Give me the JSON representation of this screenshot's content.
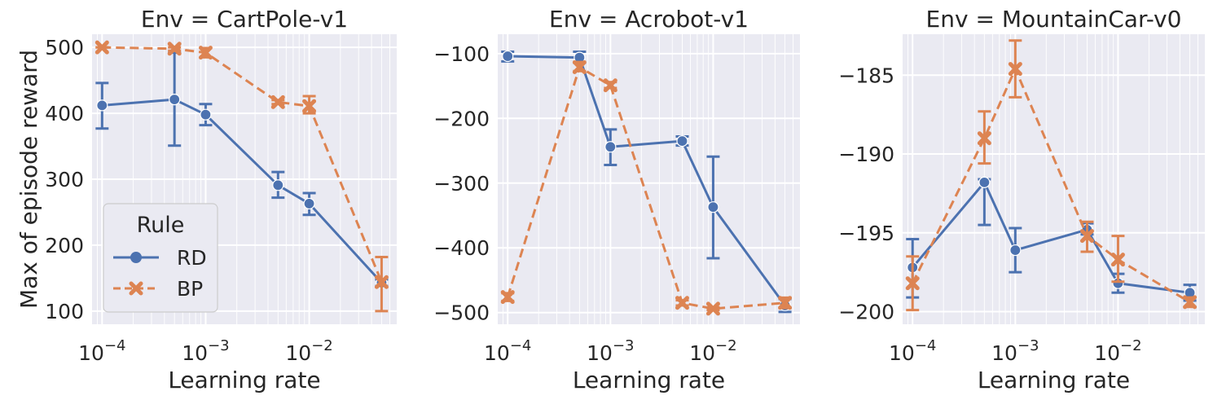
{
  "colors": {
    "RD": "#4c72b0",
    "BP": "#dd8452"
  },
  "legend": {
    "title": "Rule",
    "placement": "lower-left",
    "entries": [
      "RD",
      "BP"
    ]
  },
  "chart_data": [
    {
      "type": "line",
      "title": "Env = CartPole-v1",
      "xlabel": "Learning rate",
      "ylabel": "Max of episode reward",
      "xscale": "log",
      "xlim": [
        8e-05,
        0.07
      ],
      "xticks": [
        0.0001,
        0.001,
        0.01
      ],
      "xtick_labels": [
        [
          "10",
          "−4"
        ],
        [
          "10",
          "−3"
        ],
        [
          "10",
          "−2"
        ]
      ],
      "ylim": [
        80,
        520
      ],
      "yticks": [
        100,
        200,
        300,
        400,
        500
      ],
      "ytick_labels": [
        "100",
        "200",
        "300",
        "400",
        "500"
      ],
      "grid": true,
      "x": [
        0.0001,
        0.0005,
        0.001,
        0.005,
        0.01,
        0.05
      ],
      "series": [
        {
          "name": "RD",
          "values": [
            412,
            421,
            398,
            291,
            263,
            143
          ],
          "err_low": [
            377,
            351,
            382,
            272,
            246,
            138
          ],
          "err_high": [
            446,
            492,
            414,
            311,
            279,
            148
          ]
        },
        {
          "name": "BP",
          "values": [
            500,
            498,
            492,
            417,
            411,
            144
          ],
          "err_low": [
            500,
            495,
            485,
            414,
            400,
            100
          ],
          "err_high": [
            500,
            500,
            499,
            420,
            426,
            182
          ]
        }
      ]
    },
    {
      "type": "line",
      "title": "Env = Acrobot-v1",
      "xlabel": "Learning rate",
      "ylabel": "",
      "xscale": "log",
      "xlim": [
        8e-05,
        0.07
      ],
      "xticks": [
        0.0001,
        0.001,
        0.01
      ],
      "xtick_labels": [
        [
          "10",
          "−4"
        ],
        [
          "10",
          "−3"
        ],
        [
          "10",
          "−2"
        ]
      ],
      "ylim": [
        -518,
        -70
      ],
      "yticks": [
        -500,
        -400,
        -300,
        -200,
        -100
      ],
      "ytick_labels": [
        "−500",
        "−400",
        "−300",
        "−200",
        "−100"
      ],
      "grid": true,
      "x": [
        0.0001,
        0.0005,
        0.001,
        0.005,
        0.01,
        0.05
      ],
      "series": [
        {
          "name": "RD",
          "values": [
            -104,
            -106,
            -244,
            -235,
            -337,
            -489
          ],
          "err_low": [
            -112,
            -114,
            -272,
            -242,
            -416,
            -499
          ],
          "err_high": [
            -97,
            -97,
            -217,
            -228,
            -259,
            -479
          ]
        },
        {
          "name": "BP",
          "values": [
            -476,
            -121,
            -149,
            -485,
            -494,
            -485
          ],
          "err_low": [
            -482,
            -127,
            -153,
            -489,
            -496,
            -493
          ],
          "err_high": [
            -470,
            -113,
            -144,
            -481,
            -492,
            -477
          ]
        }
      ]
    },
    {
      "type": "line",
      "title": "Env = MountainCar-v0",
      "xlabel": "Learning rate",
      "ylabel": "",
      "xscale": "log",
      "xlim": [
        8e-05,
        0.07
      ],
      "xticks": [
        0.0001,
        0.001,
        0.01
      ],
      "xtick_labels": [
        [
          "10",
          "−4"
        ],
        [
          "10",
          "−3"
        ],
        [
          "10",
          "−2"
        ]
      ],
      "ylim": [
        -200.8,
        -182.4
      ],
      "yticks": [
        -200,
        -195,
        -190,
        -185
      ],
      "ytick_labels": [
        "−200",
        "−195",
        "−190",
        "−185"
      ],
      "grid": true,
      "x": [
        0.0001,
        0.0005,
        0.001,
        0.005,
        0.01,
        0.05
      ],
      "series": [
        {
          "name": "RD",
          "values": [
            -197.2,
            -191.8,
            -196.1,
            -194.8,
            -198.2,
            -198.8
          ],
          "err_low": [
            -199.1,
            -194.5,
            -197.5,
            -195.1,
            -198.8,
            -199.3
          ],
          "err_high": [
            -195.4,
            -191.6,
            -194.7,
            -194.4,
            -197.6,
            -198.3
          ]
        },
        {
          "name": "BP",
          "values": [
            -198.2,
            -189.0,
            -184.6,
            -195.2,
            -196.7,
            -199.4
          ],
          "err_low": [
            -199.9,
            -190.6,
            -186.4,
            -196.2,
            -198.1,
            -199.7
          ],
          "err_high": [
            -196.5,
            -187.3,
            -182.8,
            -194.3,
            -195.2,
            -199.1
          ]
        }
      ]
    }
  ]
}
